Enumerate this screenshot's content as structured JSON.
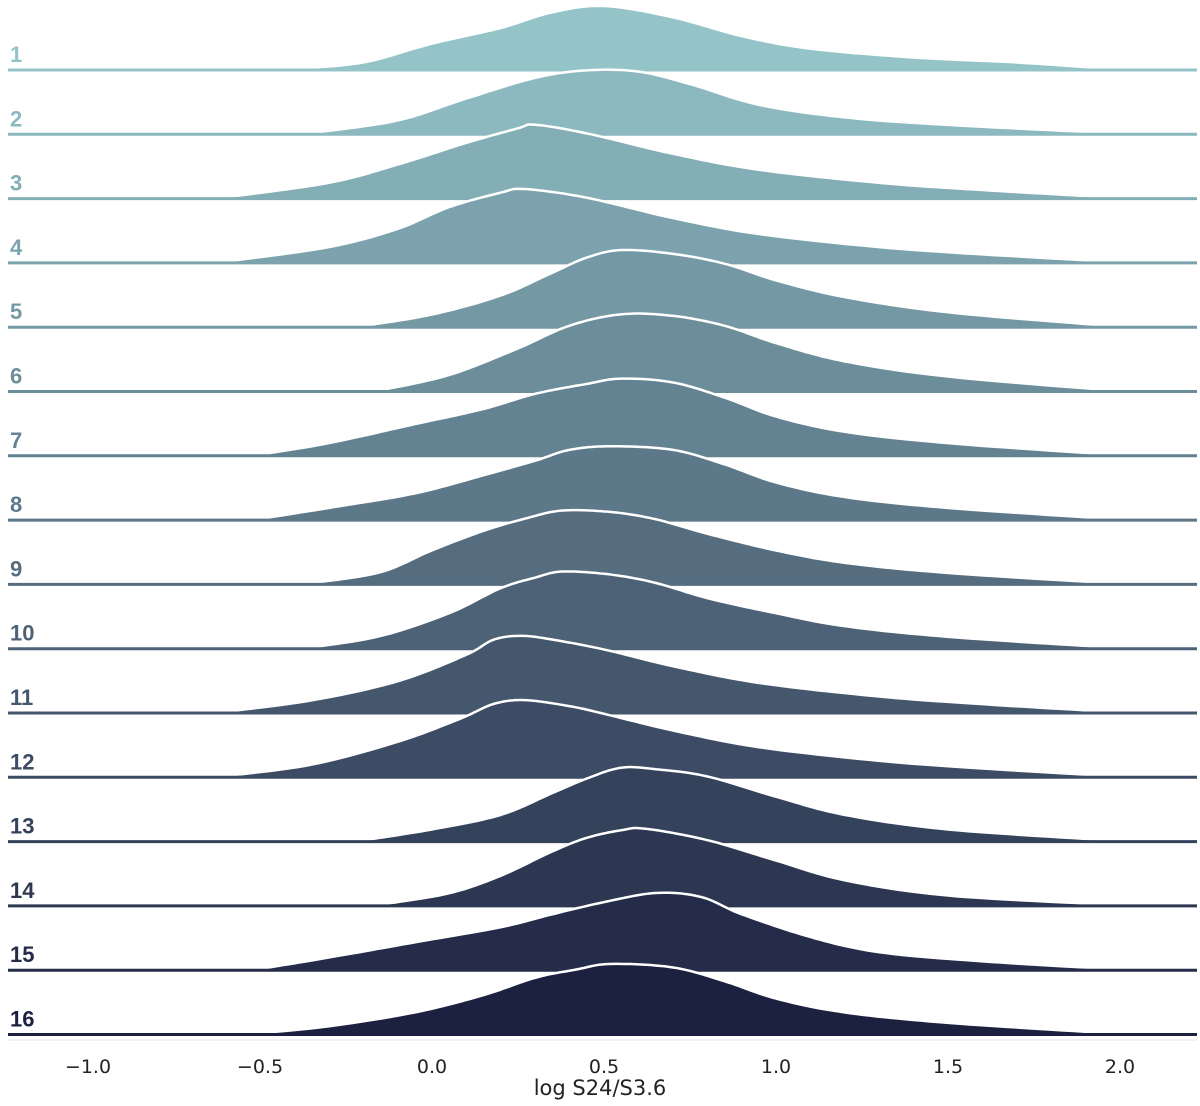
{
  "chart_data": {
    "type": "ridgeline",
    "xlabel": "log S24/S3.6",
    "xlim": [
      -1.2,
      2.25
    ],
    "xticks": [
      -1.0,
      -0.5,
      0.0,
      0.5,
      1.0,
      1.5,
      2.0
    ],
    "xtick_labels": [
      "−1.0",
      "−0.5",
      "0.0",
      "0.5",
      "1.0",
      "1.5",
      "2.0"
    ],
    "grid": false,
    "legend": "none",
    "color_start": "#94c4c8",
    "color_end": "#1d2140",
    "outline_color": "#ffffff",
    "series": [
      {
        "name": "1",
        "support": [
          -0.4,
          1.97
        ],
        "peak_height": 0.95,
        "points": [
          [
            -0.4,
            0.0
          ],
          [
            -0.2,
            0.1
          ],
          [
            0.0,
            0.4
          ],
          [
            0.2,
            0.65
          ],
          [
            0.35,
            0.9
          ],
          [
            0.5,
            1.0
          ],
          [
            0.7,
            0.82
          ],
          [
            0.9,
            0.52
          ],
          [
            1.1,
            0.32
          ],
          [
            1.4,
            0.18
          ],
          [
            1.7,
            0.1
          ],
          [
            1.97,
            0.0
          ]
        ]
      },
      {
        "name": "2",
        "support": [
          -0.35,
          1.97
        ],
        "peak_height": 0.95,
        "points": [
          [
            -0.35,
            0.0
          ],
          [
            -0.1,
            0.2
          ],
          [
            0.1,
            0.55
          ],
          [
            0.3,
            0.88
          ],
          [
            0.45,
            1.0
          ],
          [
            0.6,
            0.98
          ],
          [
            0.75,
            0.78
          ],
          [
            0.95,
            0.45
          ],
          [
            1.2,
            0.25
          ],
          [
            1.5,
            0.13
          ],
          [
            1.97,
            0.0
          ]
        ]
      },
      {
        "name": "3",
        "support": [
          -0.6,
          1.97
        ],
        "peak_height": 1.1,
        "points": [
          [
            -0.6,
            0.0
          ],
          [
            -0.3,
            0.2
          ],
          [
            -0.1,
            0.45
          ],
          [
            0.1,
            0.75
          ],
          [
            0.25,
            0.95
          ],
          [
            0.3,
            1.0
          ],
          [
            0.45,
            0.88
          ],
          [
            0.7,
            0.6
          ],
          [
            0.95,
            0.38
          ],
          [
            1.3,
            0.2
          ],
          [
            1.6,
            0.1
          ],
          [
            1.97,
            0.0
          ]
        ]
      },
      {
        "name": "4",
        "support": [
          -0.6,
          1.97
        ],
        "peak_height": 1.1,
        "points": [
          [
            -0.6,
            0.0
          ],
          [
            -0.3,
            0.2
          ],
          [
            -0.1,
            0.45
          ],
          [
            0.05,
            0.75
          ],
          [
            0.2,
            0.95
          ],
          [
            0.27,
            1.0
          ],
          [
            0.45,
            0.88
          ],
          [
            0.7,
            0.6
          ],
          [
            0.95,
            0.38
          ],
          [
            1.3,
            0.2
          ],
          [
            1.6,
            0.1
          ],
          [
            1.97,
            0.0
          ]
        ]
      },
      {
        "name": "5",
        "support": [
          -0.2,
          1.97
        ],
        "peak_height": 1.15,
        "points": [
          [
            -0.2,
            0.0
          ],
          [
            0.0,
            0.15
          ],
          [
            0.2,
            0.4
          ],
          [
            0.35,
            0.7
          ],
          [
            0.45,
            0.9
          ],
          [
            0.55,
            1.0
          ],
          [
            0.7,
            0.95
          ],
          [
            0.85,
            0.82
          ],
          [
            1.0,
            0.6
          ],
          [
            1.2,
            0.38
          ],
          [
            1.5,
            0.18
          ],
          [
            1.97,
            0.0
          ]
        ]
      },
      {
        "name": "6",
        "support": [
          -0.15,
          1.97
        ],
        "peak_height": 1.15,
        "points": [
          [
            -0.15,
            0.0
          ],
          [
            0.05,
            0.2
          ],
          [
            0.25,
            0.55
          ],
          [
            0.4,
            0.85
          ],
          [
            0.55,
            1.0
          ],
          [
            0.7,
            0.98
          ],
          [
            0.85,
            0.85
          ],
          [
            1.0,
            0.62
          ],
          [
            1.2,
            0.38
          ],
          [
            1.5,
            0.18
          ],
          [
            1.97,
            0.0
          ]
        ]
      },
      {
        "name": "7",
        "support": [
          -0.5,
          1.97
        ],
        "peak_height": 1.15,
        "points": [
          [
            -0.5,
            0.0
          ],
          [
            -0.3,
            0.15
          ],
          [
            -0.05,
            0.4
          ],
          [
            0.15,
            0.6
          ],
          [
            0.3,
            0.8
          ],
          [
            0.45,
            0.93
          ],
          [
            0.55,
            1.0
          ],
          [
            0.7,
            0.95
          ],
          [
            0.85,
            0.75
          ],
          [
            1.0,
            0.5
          ],
          [
            1.2,
            0.3
          ],
          [
            1.5,
            0.15
          ],
          [
            1.97,
            0.0
          ]
        ]
      },
      {
        "name": "8",
        "support": [
          -0.5,
          1.97
        ],
        "peak_height": 1.1,
        "points": [
          [
            -0.5,
            0.0
          ],
          [
            -0.3,
            0.15
          ],
          [
            -0.05,
            0.35
          ],
          [
            0.15,
            0.6
          ],
          [
            0.3,
            0.8
          ],
          [
            0.4,
            0.95
          ],
          [
            0.52,
            1.0
          ],
          [
            0.7,
            0.95
          ],
          [
            0.85,
            0.75
          ],
          [
            1.0,
            0.5
          ],
          [
            1.2,
            0.3
          ],
          [
            1.5,
            0.15
          ],
          [
            1.97,
            0.0
          ]
        ]
      },
      {
        "name": "9",
        "support": [
          -0.35,
          1.97
        ],
        "peak_height": 1.1,
        "points": [
          [
            -0.35,
            0.0
          ],
          [
            -0.15,
            0.15
          ],
          [
            0.0,
            0.45
          ],
          [
            0.15,
            0.72
          ],
          [
            0.28,
            0.9
          ],
          [
            0.38,
            1.0
          ],
          [
            0.52,
            0.98
          ],
          [
            0.65,
            0.88
          ],
          [
            0.8,
            0.68
          ],
          [
            1.0,
            0.45
          ],
          [
            1.2,
            0.28
          ],
          [
            1.5,
            0.14
          ],
          [
            1.97,
            0.0
          ]
        ]
      },
      {
        "name": "10",
        "support": [
          -0.35,
          1.97
        ],
        "peak_height": 1.15,
        "points": [
          [
            -0.35,
            0.0
          ],
          [
            -0.15,
            0.15
          ],
          [
            0.05,
            0.45
          ],
          [
            0.2,
            0.78
          ],
          [
            0.3,
            0.92
          ],
          [
            0.38,
            1.0
          ],
          [
            0.52,
            0.96
          ],
          [
            0.65,
            0.85
          ],
          [
            0.8,
            0.65
          ],
          [
            1.0,
            0.45
          ],
          [
            1.2,
            0.28
          ],
          [
            1.5,
            0.14
          ],
          [
            1.97,
            0.0
          ]
        ]
      },
      {
        "name": "11",
        "support": [
          -0.6,
          1.97
        ],
        "peak_height": 1.15,
        "points": [
          [
            -0.6,
            0.0
          ],
          [
            -0.35,
            0.15
          ],
          [
            -0.1,
            0.4
          ],
          [
            0.1,
            0.75
          ],
          [
            0.18,
            0.95
          ],
          [
            0.26,
            1.0
          ],
          [
            0.35,
            0.95
          ],
          [
            0.5,
            0.82
          ],
          [
            0.7,
            0.6
          ],
          [
            0.95,
            0.38
          ],
          [
            1.3,
            0.2
          ],
          [
            1.6,
            0.1
          ],
          [
            1.97,
            0.0
          ]
        ]
      },
      {
        "name": "12",
        "support": [
          -0.6,
          1.97
        ],
        "peak_height": 1.15,
        "points": [
          [
            -0.6,
            0.0
          ],
          [
            -0.35,
            0.15
          ],
          [
            -0.1,
            0.45
          ],
          [
            0.08,
            0.75
          ],
          [
            0.18,
            0.95
          ],
          [
            0.27,
            1.0
          ],
          [
            0.4,
            0.92
          ],
          [
            0.5,
            0.82
          ],
          [
            0.7,
            0.6
          ],
          [
            0.95,
            0.38
          ],
          [
            1.3,
            0.2
          ],
          [
            1.6,
            0.1
          ],
          [
            1.97,
            0.0
          ]
        ]
      },
      {
        "name": "13",
        "support": [
          -0.2,
          1.97
        ],
        "peak_height": 1.1,
        "points": [
          [
            -0.2,
            0.0
          ],
          [
            0.0,
            0.15
          ],
          [
            0.2,
            0.35
          ],
          [
            0.35,
            0.65
          ],
          [
            0.45,
            0.85
          ],
          [
            0.55,
            1.0
          ],
          [
            0.65,
            0.98
          ],
          [
            0.8,
            0.88
          ],
          [
            1.0,
            0.6
          ],
          [
            1.2,
            0.35
          ],
          [
            1.5,
            0.15
          ],
          [
            1.97,
            0.0
          ]
        ]
      },
      {
        "name": "14",
        "support": [
          -0.15,
          1.97
        ],
        "peak_height": 1.15,
        "points": [
          [
            -0.15,
            0.0
          ],
          [
            0.05,
            0.15
          ],
          [
            0.2,
            0.38
          ],
          [
            0.35,
            0.7
          ],
          [
            0.45,
            0.88
          ],
          [
            0.55,
            0.98
          ],
          [
            0.62,
            1.0
          ],
          [
            0.8,
            0.85
          ],
          [
            1.0,
            0.58
          ],
          [
            1.2,
            0.32
          ],
          [
            1.5,
            0.12
          ],
          [
            1.97,
            0.0
          ]
        ]
      },
      {
        "name": "15",
        "support": [
          -0.5,
          1.97
        ],
        "peak_height": 1.15,
        "points": [
          [
            -0.5,
            0.0
          ],
          [
            -0.3,
            0.15
          ],
          [
            -0.05,
            0.35
          ],
          [
            0.2,
            0.55
          ],
          [
            0.35,
            0.72
          ],
          [
            0.5,
            0.88
          ],
          [
            0.65,
            1.0
          ],
          [
            0.78,
            0.95
          ],
          [
            0.9,
            0.72
          ],
          [
            1.1,
            0.42
          ],
          [
            1.3,
            0.22
          ],
          [
            1.6,
            0.1
          ],
          [
            1.97,
            0.0
          ]
        ]
      },
      {
        "name": "16",
        "support": [
          -0.5,
          1.97
        ],
        "peak_height": 1.05,
        "points": [
          [
            -0.5,
            0.0
          ],
          [
            -0.3,
            0.1
          ],
          [
            -0.05,
            0.3
          ],
          [
            0.15,
            0.55
          ],
          [
            0.3,
            0.8
          ],
          [
            0.42,
            0.92
          ],
          [
            0.52,
            1.0
          ],
          [
            0.7,
            0.95
          ],
          [
            0.85,
            0.75
          ],
          [
            1.0,
            0.5
          ],
          [
            1.2,
            0.3
          ],
          [
            1.5,
            0.15
          ],
          [
            1.97,
            0.0
          ]
        ]
      }
    ]
  }
}
